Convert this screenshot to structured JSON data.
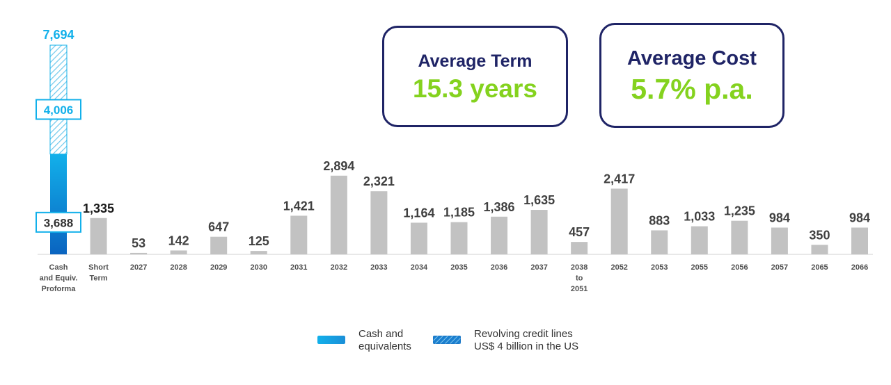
{
  "kpis": {
    "term": {
      "label": "Average Term",
      "value": "15.3 years"
    },
    "cost": {
      "label": "Average Cost",
      "value": "5.7% p.a."
    }
  },
  "legend": {
    "cash": {
      "line1": "Cash and",
      "line2": "equivalents"
    },
    "revolving": {
      "line1": "Revolving credit lines",
      "line2": "US$ 4 billion in the US"
    }
  },
  "colors": {
    "cash_blue": "#12b0ea",
    "cash_blue_dark": "#0a64c0",
    "bar_gray": "#c2c2c2",
    "value_label": "#404040",
    "navy": "#1f2466",
    "green": "#84d21e"
  },
  "chart_data": {
    "type": "bar",
    "categories": [
      [
        "Cash",
        "and Equiv.",
        "Proforma"
      ],
      [
        "Short",
        "Term"
      ],
      [
        "2027"
      ],
      [
        "2028"
      ],
      [
        "2029"
      ],
      [
        "2030"
      ],
      [
        "2031"
      ],
      [
        "2032"
      ],
      [
        "2033"
      ],
      [
        "2034"
      ],
      [
        "2035"
      ],
      [
        "2036"
      ],
      [
        "2037"
      ],
      [
        "2038",
        "to",
        "2051"
      ],
      [
        "2052"
      ],
      [
        "2053"
      ],
      [
        "2055"
      ],
      [
        "2056"
      ],
      [
        "2057"
      ],
      [
        "2065"
      ],
      [
        "2066"
      ]
    ],
    "values": [
      null,
      1335,
      53,
      142,
      647,
      125,
      1421,
      2894,
      2321,
      1164,
      1185,
      1386,
      1635,
      457,
      2417,
      883,
      1033,
      1235,
      984,
      350,
      984
    ],
    "value_labels": [
      "",
      "1,335",
      "53",
      "142",
      "647",
      "125",
      "1,421",
      "2,894",
      "2,321",
      "1,164",
      "1,185",
      "1,386",
      "1,635",
      "457",
      "2,417",
      "883",
      "1,033",
      "1,235",
      "984",
      "350",
      "984"
    ],
    "cash_bar": {
      "cash_value": 3688,
      "cash_label": "3,688",
      "revolving_value": 4006,
      "revolving_label": "4,006",
      "total_value": 7694,
      "total_label": "7,694"
    },
    "ylim": [
      0,
      7694
    ],
    "title": "",
    "xlabel": "",
    "ylabel": "",
    "grid": false
  }
}
